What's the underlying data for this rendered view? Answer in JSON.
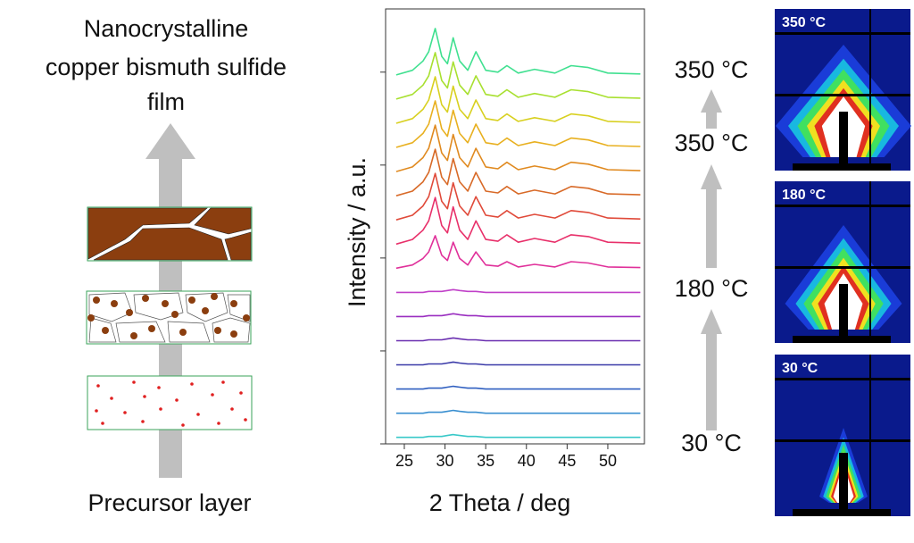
{
  "diagram": {
    "title_lines": [
      "Nanocrystalline",
      "copper bismuth sulfide",
      "film"
    ],
    "bottom_label": "Precursor layer"
  },
  "chart_data": {
    "type": "line",
    "xlabel": "2 Theta / deg",
    "ylabel": "Intensity / a.u.",
    "xlim": [
      22.7,
      54.5
    ],
    "xticks": [
      25,
      30,
      35,
      40,
      45,
      50
    ],
    "ylim": [
      0,
      4.68
    ],
    "yticks": [
      0,
      1,
      2,
      3,
      4
    ],
    "x": [
      24,
      26,
      27.3,
      28,
      28.8,
      29.6,
      30.3,
      31,
      31.8,
      32.8,
      33.8,
      35,
      36.5,
      37.6,
      39,
      41,
      43.5,
      45.5,
      47.6,
      50,
      54
    ],
    "series": [
      {
        "color": "#38c8c8",
        "values": [
          0.07,
          0.07,
          0.07,
          0.08,
          0.08,
          0.08,
          0.09,
          0.1,
          0.09,
          0.08,
          0.08,
          0.07,
          0.07,
          0.07,
          0.07,
          0.07,
          0.07,
          0.07,
          0.07,
          0.07,
          0.07
        ]
      },
      {
        "color": "#3a8fd0",
        "values": [
          0.33,
          0.33,
          0.33,
          0.34,
          0.34,
          0.34,
          0.35,
          0.36,
          0.35,
          0.34,
          0.34,
          0.33,
          0.33,
          0.33,
          0.33,
          0.33,
          0.33,
          0.33,
          0.33,
          0.33,
          0.33
        ]
      },
      {
        "color": "#2f5fc0",
        "values": [
          0.59,
          0.59,
          0.59,
          0.6,
          0.6,
          0.6,
          0.61,
          0.62,
          0.61,
          0.6,
          0.6,
          0.59,
          0.59,
          0.59,
          0.59,
          0.59,
          0.59,
          0.59,
          0.59,
          0.59,
          0.59
        ]
      },
      {
        "color": "#3a3aa8",
        "values": [
          0.85,
          0.85,
          0.85,
          0.86,
          0.86,
          0.86,
          0.87,
          0.88,
          0.87,
          0.86,
          0.86,
          0.85,
          0.85,
          0.85,
          0.85,
          0.85,
          0.85,
          0.85,
          0.85,
          0.85,
          0.85
        ]
      },
      {
        "color": "#6a2fb0",
        "values": [
          1.11,
          1.11,
          1.11,
          1.12,
          1.12,
          1.12,
          1.13,
          1.14,
          1.13,
          1.12,
          1.12,
          1.11,
          1.11,
          1.11,
          1.11,
          1.11,
          1.11,
          1.11,
          1.11,
          1.11,
          1.11
        ]
      },
      {
        "color": "#9a2fc0",
        "values": [
          1.37,
          1.37,
          1.37,
          1.38,
          1.38,
          1.38,
          1.39,
          1.4,
          1.39,
          1.38,
          1.38,
          1.37,
          1.37,
          1.37,
          1.37,
          1.37,
          1.37,
          1.37,
          1.37,
          1.37,
          1.37
        ]
      },
      {
        "color": "#c040c8",
        "values": [
          1.63,
          1.63,
          1.63,
          1.64,
          1.64,
          1.64,
          1.65,
          1.66,
          1.65,
          1.64,
          1.64,
          1.63,
          1.63,
          1.63,
          1.63,
          1.63,
          1.63,
          1.63,
          1.63,
          1.63,
          1.63
        ]
      },
      {
        "color": "#e0309a",
        "values": [
          1.89,
          1.925,
          1.995,
          2.065,
          2.24,
          2.03,
          1.974,
          2.17,
          1.995,
          1.925,
          2.065,
          1.925,
          1.911,
          1.96,
          1.904,
          1.932,
          1.904,
          1.96,
          1.946,
          1.904,
          1.897
        ]
      },
      {
        "color": "#e8306a",
        "values": [
          2.15,
          2.2,
          2.3,
          2.4,
          2.65,
          2.35,
          2.27,
          2.55,
          2.3,
          2.2,
          2.4,
          2.2,
          2.18,
          2.25,
          2.17,
          2.21,
          2.17,
          2.25,
          2.23,
          2.17,
          2.16
        ]
      },
      {
        "color": "#e04a3a",
        "values": [
          2.41,
          2.46,
          2.56,
          2.66,
          2.91,
          2.61,
          2.53,
          2.81,
          2.56,
          2.46,
          2.66,
          2.46,
          2.44,
          2.51,
          2.43,
          2.47,
          2.43,
          2.51,
          2.49,
          2.43,
          2.42
        ]
      },
      {
        "color": "#d86a28",
        "values": [
          2.67,
          2.72,
          2.82,
          2.92,
          3.17,
          2.87,
          2.79,
          3.07,
          2.82,
          2.72,
          2.92,
          2.72,
          2.7,
          2.77,
          2.69,
          2.73,
          2.69,
          2.77,
          2.75,
          2.69,
          2.68
        ]
      },
      {
        "color": "#e08a20",
        "values": [
          2.93,
          2.98,
          3.08,
          3.18,
          3.43,
          3.13,
          3.05,
          3.33,
          3.08,
          2.98,
          3.18,
          2.98,
          2.96,
          3.03,
          2.95,
          2.99,
          2.95,
          3.03,
          3.01,
          2.95,
          2.94
        ]
      },
      {
        "color": "#e8b020",
        "values": [
          3.19,
          3.24,
          3.34,
          3.44,
          3.69,
          3.39,
          3.31,
          3.59,
          3.34,
          3.24,
          3.44,
          3.24,
          3.22,
          3.29,
          3.21,
          3.25,
          3.21,
          3.29,
          3.27,
          3.21,
          3.2
        ]
      },
      {
        "color": "#d8d020",
        "values": [
          3.45,
          3.5,
          3.6,
          3.7,
          3.95,
          3.65,
          3.57,
          3.85,
          3.6,
          3.5,
          3.7,
          3.5,
          3.48,
          3.55,
          3.47,
          3.51,
          3.47,
          3.55,
          3.53,
          3.47,
          3.46
        ]
      },
      {
        "color": "#a8e030",
        "values": [
          3.71,
          3.76,
          3.86,
          3.96,
          4.21,
          3.91,
          3.83,
          4.11,
          3.86,
          3.76,
          3.96,
          3.76,
          3.74,
          3.81,
          3.73,
          3.77,
          3.73,
          3.81,
          3.79,
          3.73,
          3.72
        ]
      },
      {
        "color": "#40e090",
        "values": [
          3.97,
          4.02,
          4.12,
          4.22,
          4.47,
          4.17,
          4.09,
          4.37,
          4.12,
          4.02,
          4.22,
          4.02,
          4.0,
          4.07,
          3.99,
          4.03,
          3.99,
          4.07,
          4.05,
          3.99,
          3.98
        ]
      }
    ]
  },
  "temperature_labels": [
    "350 °C",
    "350 °C",
    "180 °C",
    "30 °C"
  ],
  "gisaxs_images": [
    {
      "label": "350 °C"
    },
    {
      "label": "180 °C"
    },
    {
      "label": "30 °C"
    }
  ]
}
